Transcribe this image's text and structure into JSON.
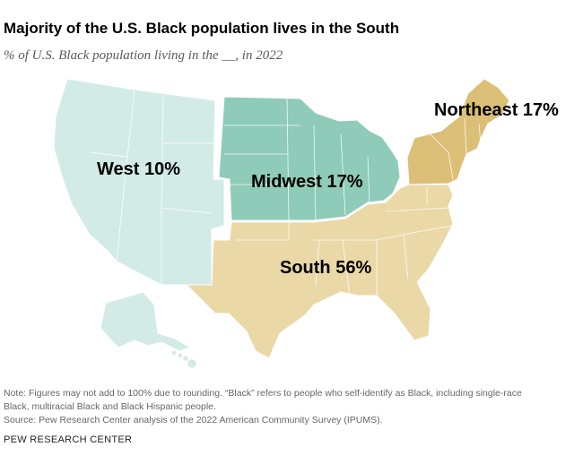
{
  "title": "Majority of the U.S. Black population lives in the South",
  "subtitle": "% of U.S. Black population living in the __, in 2022",
  "regions": [
    {
      "name": "West",
      "value": "10%",
      "color": "#d3ebe6"
    },
    {
      "name": "Midwest",
      "value": "17%",
      "color": "#8ecbb9"
    },
    {
      "name": "Northeast",
      "value": "17%",
      "color": "#dcbf77"
    },
    {
      "name": "South",
      "value": "56%",
      "color": "#ead8a6"
    }
  ],
  "notes": {
    "note_line1": "Note: Figures may not add to 100% due to rounding. “Black” refers to people who self-identify as Black, including single-race",
    "note_line2": "Black, multiracial Black and Black Hispanic people.",
    "source": "Source: Pew Research Center analysis of the 2022 American Community Survey (IPUMS)."
  },
  "brand": "PEW RESEARCH CENTER"
}
